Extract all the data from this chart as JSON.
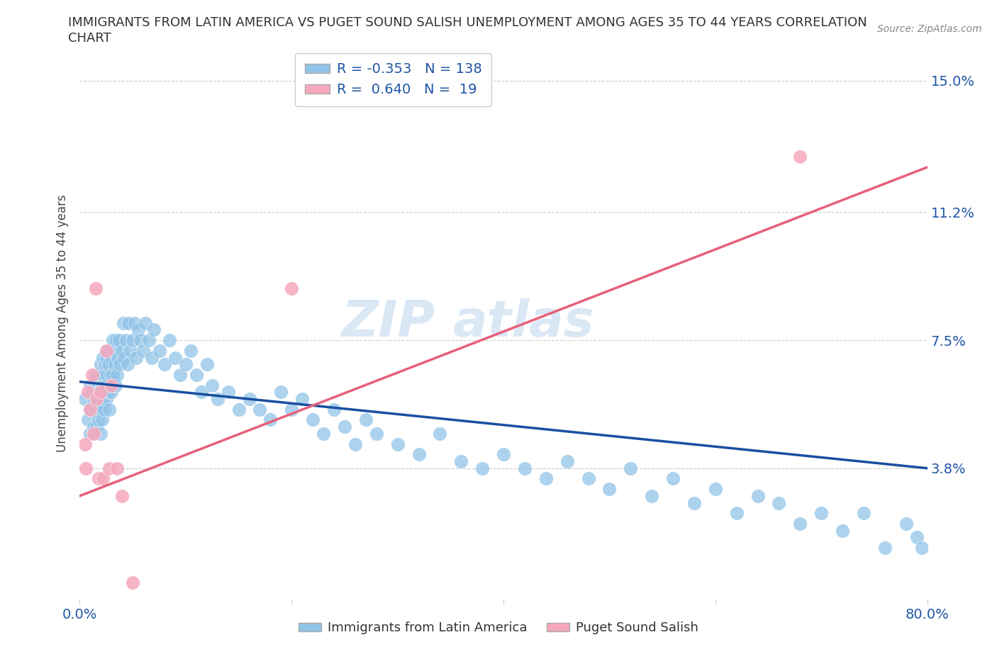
{
  "title_line1": "IMMIGRANTS FROM LATIN AMERICA VS PUGET SOUND SALISH UNEMPLOYMENT AMONG AGES 35 TO 44 YEARS CORRELATION",
  "title_line2": "CHART",
  "source": "Source: ZipAtlas.com",
  "ylabel": "Unemployment Among Ages 35 to 44 years",
  "xlim": [
    0.0,
    0.8
  ],
  "ylim": [
    0.0,
    0.16
  ],
  "yticks": [
    0.038,
    0.075,
    0.112,
    0.15
  ],
  "ytick_labels": [
    "3.8%",
    "7.5%",
    "11.2%",
    "15.0%"
  ],
  "blue_R": -0.353,
  "blue_N": 138,
  "pink_R": 0.64,
  "pink_N": 19,
  "blue_color": "#90C3E8",
  "pink_color": "#F5A8BC",
  "blue_line_color": "#1A4FA0",
  "pink_line_color": "#E8607A",
  "legend_label_blue": "Immigrants from Latin America",
  "legend_label_pink": "Puget Sound Salish",
  "blue_trendline_x": [
    0.0,
    0.8
  ],
  "blue_trendline_y": [
    0.063,
    0.038
  ],
  "pink_trendline_x": [
    0.0,
    0.8
  ],
  "pink_trendline_y": [
    0.03,
    0.125
  ],
  "blue_x": [
    0.005,
    0.008,
    0.01,
    0.01,
    0.01,
    0.012,
    0.013,
    0.013,
    0.014,
    0.015,
    0.015,
    0.015,
    0.016,
    0.016,
    0.017,
    0.017,
    0.018,
    0.018,
    0.018,
    0.019,
    0.019,
    0.02,
    0.02,
    0.02,
    0.02,
    0.021,
    0.021,
    0.022,
    0.022,
    0.022,
    0.023,
    0.023,
    0.024,
    0.024,
    0.025,
    0.025,
    0.025,
    0.026,
    0.026,
    0.027,
    0.027,
    0.028,
    0.028,
    0.029,
    0.03,
    0.03,
    0.031,
    0.031,
    0.032,
    0.033,
    0.033,
    0.034,
    0.034,
    0.035,
    0.036,
    0.037,
    0.038,
    0.04,
    0.041,
    0.042,
    0.044,
    0.045,
    0.046,
    0.048,
    0.05,
    0.052,
    0.053,
    0.055,
    0.057,
    0.06,
    0.062,
    0.065,
    0.068,
    0.07,
    0.075,
    0.08,
    0.085,
    0.09,
    0.095,
    0.1,
    0.105,
    0.11,
    0.115,
    0.12,
    0.125,
    0.13,
    0.14,
    0.15,
    0.16,
    0.17,
    0.18,
    0.19,
    0.2,
    0.21,
    0.22,
    0.23,
    0.24,
    0.25,
    0.26,
    0.27,
    0.28,
    0.3,
    0.32,
    0.34,
    0.36,
    0.38,
    0.4,
    0.42,
    0.44,
    0.46,
    0.48,
    0.5,
    0.52,
    0.54,
    0.56,
    0.58,
    0.6,
    0.62,
    0.64,
    0.66,
    0.68,
    0.7,
    0.72,
    0.74,
    0.76,
    0.78,
    0.79,
    0.795
  ],
  "blue_y": [
    0.058,
    0.052,
    0.048,
    0.055,
    0.062,
    0.06,
    0.05,
    0.058,
    0.063,
    0.055,
    0.06,
    0.065,
    0.05,
    0.058,
    0.062,
    0.055,
    0.06,
    0.052,
    0.058,
    0.06,
    0.065,
    0.048,
    0.055,
    0.06,
    0.068,
    0.052,
    0.062,
    0.058,
    0.065,
    0.07,
    0.055,
    0.062,
    0.06,
    0.068,
    0.062,
    0.058,
    0.07,
    0.065,
    0.072,
    0.06,
    0.068,
    0.055,
    0.072,
    0.065,
    0.06,
    0.07,
    0.065,
    0.075,
    0.062,
    0.072,
    0.068,
    0.062,
    0.075,
    0.065,
    0.07,
    0.075,
    0.068,
    0.072,
    0.08,
    0.07,
    0.075,
    0.068,
    0.08,
    0.072,
    0.075,
    0.08,
    0.07,
    0.078,
    0.075,
    0.072,
    0.08,
    0.075,
    0.07,
    0.078,
    0.072,
    0.068,
    0.075,
    0.07,
    0.065,
    0.068,
    0.072,
    0.065,
    0.06,
    0.068,
    0.062,
    0.058,
    0.06,
    0.055,
    0.058,
    0.055,
    0.052,
    0.06,
    0.055,
    0.058,
    0.052,
    0.048,
    0.055,
    0.05,
    0.045,
    0.052,
    0.048,
    0.045,
    0.042,
    0.048,
    0.04,
    0.038,
    0.042,
    0.038,
    0.035,
    0.04,
    0.035,
    0.032,
    0.038,
    0.03,
    0.035,
    0.028,
    0.032,
    0.025,
    0.03,
    0.028,
    0.022,
    0.025,
    0.02,
    0.025,
    0.015,
    0.022,
    0.018,
    0.015
  ],
  "pink_x": [
    0.005,
    0.006,
    0.008,
    0.01,
    0.012,
    0.013,
    0.015,
    0.016,
    0.018,
    0.02,
    0.022,
    0.025,
    0.028,
    0.03,
    0.035,
    0.04,
    0.05,
    0.2,
    0.68
  ],
  "pink_y": [
    0.045,
    0.038,
    0.06,
    0.055,
    0.065,
    0.048,
    0.09,
    0.058,
    0.035,
    0.06,
    0.035,
    0.072,
    0.038,
    0.062,
    0.038,
    0.03,
    0.005,
    0.09,
    0.128
  ]
}
